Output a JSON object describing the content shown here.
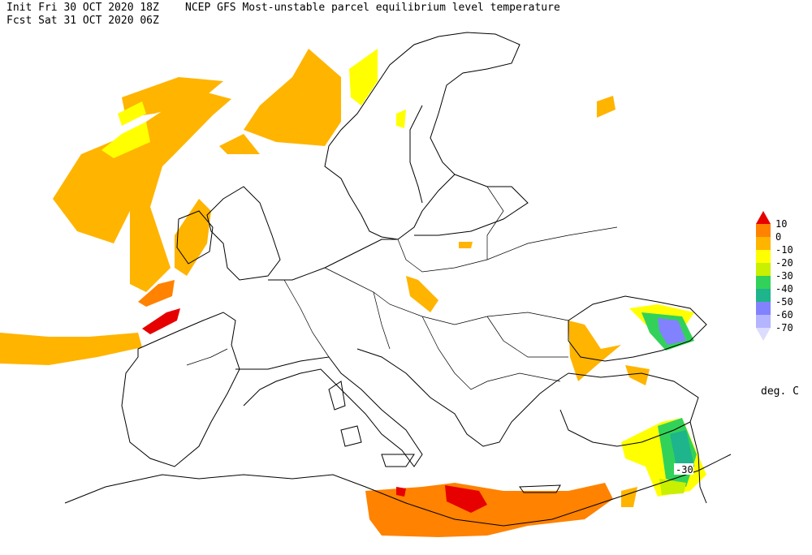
{
  "header": {
    "line1": "Init  Fri 30 OCT 2020 18Z",
    "title": "NCEP GFS Most-unstable parcel equilibrium level temperature",
    "line2": "Fcst Sat 31 OCT 2020 06Z"
  },
  "legend": {
    "labels": [
      10,
      0,
      -10,
      -20,
      -30,
      -40,
      -50,
      -60,
      -70
    ],
    "colors": [
      "#e60000",
      "#ff8200",
      "#ffb400",
      "#ffff00",
      "#c8f000",
      "#32d25a",
      "#1eb48c",
      "#8282ff",
      "#b4b4ff",
      "#dcdcff"
    ],
    "unit": "deg. C"
  },
  "map": {
    "contour_label": "-30"
  }
}
